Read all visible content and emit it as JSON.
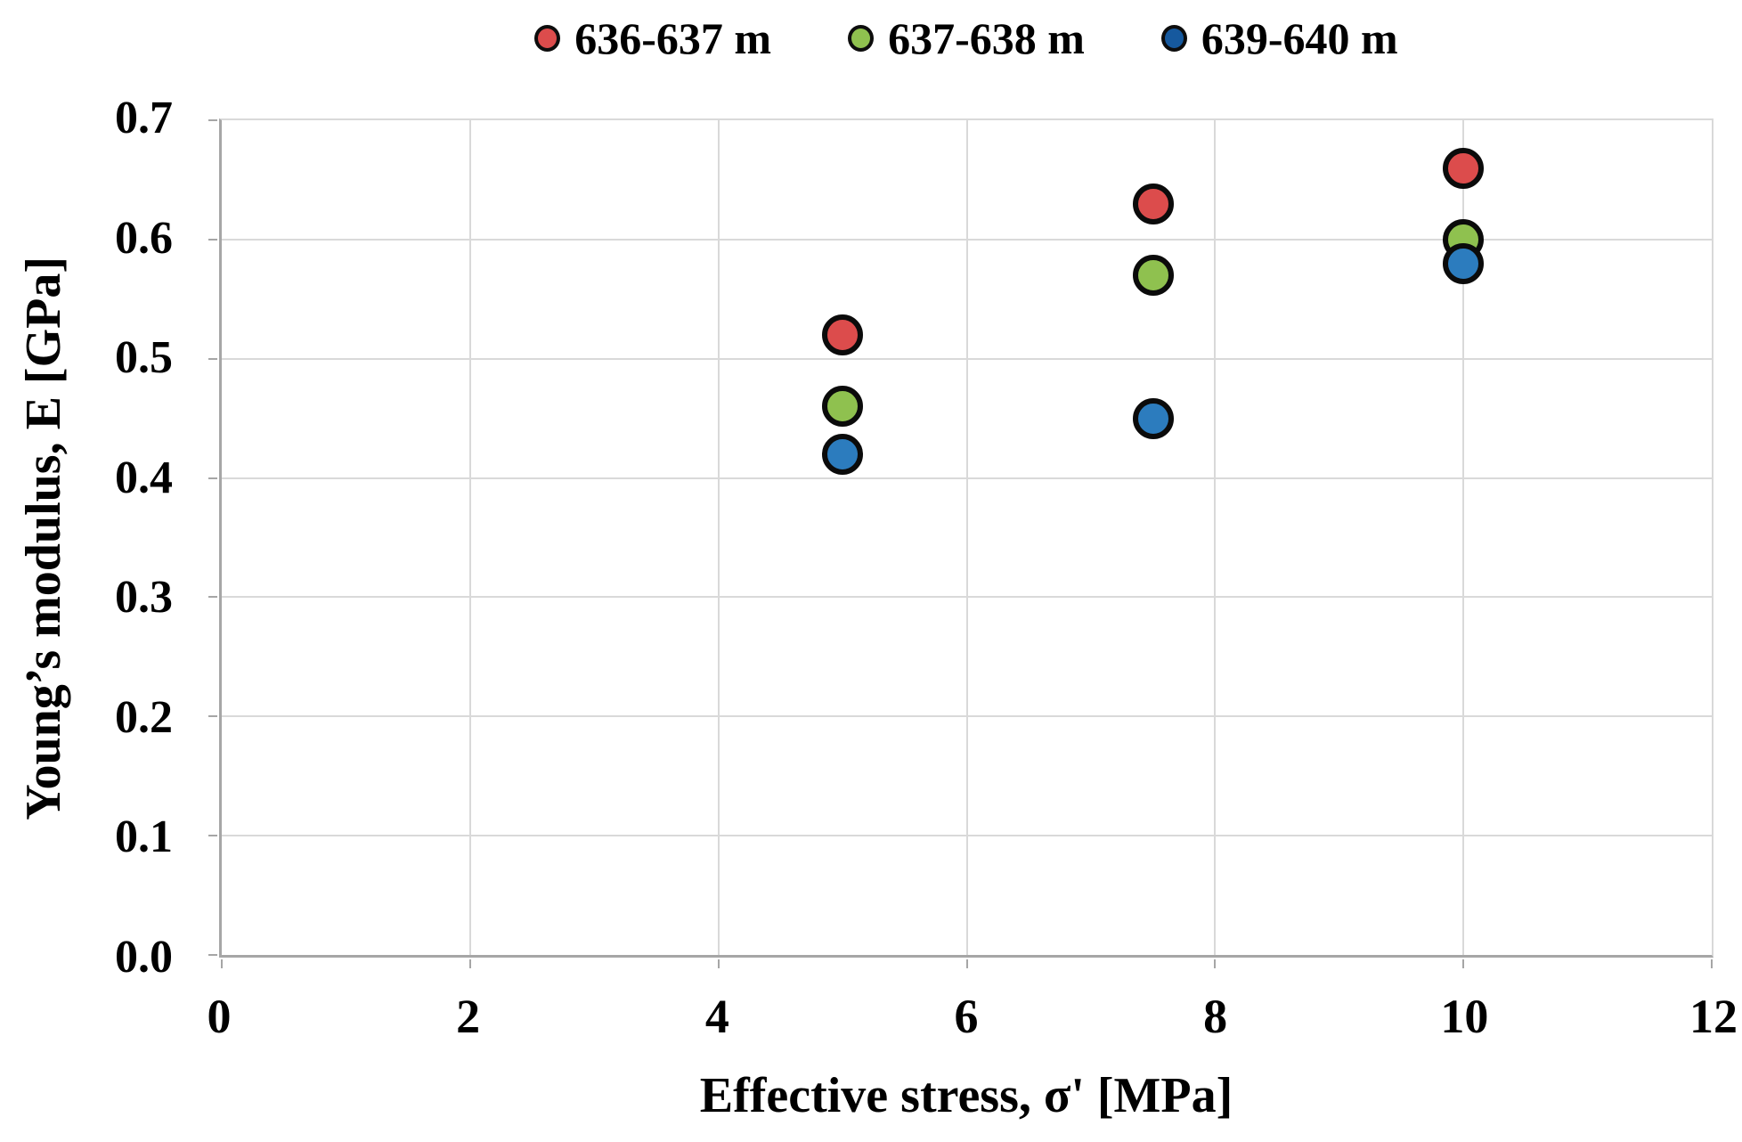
{
  "figure": {
    "background": "#ffffff",
    "text_color": "#000000"
  },
  "chart_data": {
    "type": "scatter",
    "title": "",
    "xlabel": "Effective stress, σ' [MPa]",
    "ylabel": "Young’s modulus, E [GPa]",
    "xlim": [
      0,
      12
    ],
    "ylim": [
      0.0,
      0.7
    ],
    "x_ticks": [
      {
        "label": "0",
        "value": 0
      },
      {
        "label": "2",
        "value": 2
      },
      {
        "label": "4",
        "value": 4
      },
      {
        "label": "6",
        "value": 6
      },
      {
        "label": "8",
        "value": 8
      },
      {
        "label": "10",
        "value": 10
      },
      {
        "label": "12",
        "value": 12
      }
    ],
    "y_ticks": [
      {
        "label": "0.0",
        "value": 0.0
      },
      {
        "label": "0.1",
        "value": 0.1
      },
      {
        "label": "0.2",
        "value": 0.2
      },
      {
        "label": "0.3",
        "value": 0.3
      },
      {
        "label": "0.4",
        "value": 0.4
      },
      {
        "label": "0.5",
        "value": 0.5
      },
      {
        "label": "0.6",
        "value": 0.6
      },
      {
        "label": "0.7",
        "value": 0.7
      }
    ],
    "grid": true,
    "legend_position": "top-center",
    "colors": {
      "grid": "#d9d9d9",
      "axis": "#a6a6a6",
      "marker_outline": "#0b0b0b"
    },
    "series": [
      {
        "name": "636-637 m",
        "color": "#dc4c4c",
        "legend_marker_color": "#dc4c4c",
        "points": [
          [
            5,
            0.52
          ],
          [
            7.5,
            0.63
          ],
          [
            10,
            0.66
          ]
        ]
      },
      {
        "name": "637-638 m",
        "color": "#8fc14f",
        "legend_marker_color": "#8fc14f",
        "points": [
          [
            5,
            0.46
          ],
          [
            7.5,
            0.57
          ],
          [
            10,
            0.6
          ]
        ]
      },
      {
        "name": "639-640 m",
        "color": "#2c7cbe",
        "legend_marker_color": "#16599e",
        "points": [
          [
            5,
            0.42
          ],
          [
            7.5,
            0.45
          ],
          [
            10,
            0.58
          ]
        ]
      }
    ]
  }
}
